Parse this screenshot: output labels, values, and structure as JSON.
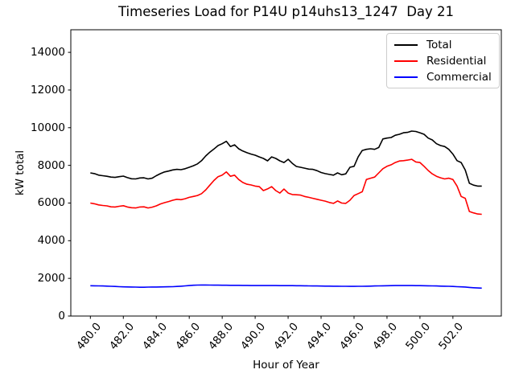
{
  "figure": {
    "background": "#ffffff",
    "axes_color": "#000000",
    "legend_border_color": "#cccccc"
  },
  "chart_data": {
    "type": "line",
    "title": "Timeseries Load for P14U p14uhs13_1247  Day 21",
    "xlabel": "Hour of Year",
    "ylabel": "kW total",
    "grid": false,
    "legend_position": "upper right",
    "xlim": [
      478.8125,
      504.9375
    ],
    "ylim": [
      0,
      15200
    ],
    "xtick_values": [
      480,
      482,
      484,
      486,
      488,
      490,
      492,
      494,
      496,
      498,
      500,
      502
    ],
    "xtick_labels": [
      "480.0",
      "482.0",
      "484.0",
      "486.0",
      "488.0",
      "490.0",
      "492.0",
      "494.0",
      "496.0",
      "498.0",
      "500.0",
      "502.0"
    ],
    "ytick_values": [
      0,
      2000,
      4000,
      6000,
      8000,
      10000,
      12000,
      14000
    ],
    "ytick_labels": [
      "0",
      "2000",
      "4000",
      "6000",
      "8000",
      "10000",
      "12000",
      "14000"
    ],
    "x_start": 480.0,
    "x_step": 0.25,
    "x_count": 96,
    "series": [
      {
        "name": "Total",
        "color": "#000000",
        "values": [
          7600,
          7560,
          7480,
          7450,
          7420,
          7380,
          7360,
          7400,
          7430,
          7350,
          7290,
          7280,
          7330,
          7340,
          7280,
          7320,
          7450,
          7560,
          7650,
          7700,
          7760,
          7790,
          7770,
          7820,
          7900,
          7980,
          8080,
          8250,
          8500,
          8700,
          8870,
          9050,
          9150,
          9280,
          9000,
          9090,
          8880,
          8760,
          8670,
          8600,
          8540,
          8450,
          8370,
          8240,
          8450,
          8370,
          8240,
          8150,
          8320,
          8110,
          7940,
          7900,
          7850,
          7800,
          7790,
          7720,
          7620,
          7560,
          7520,
          7480,
          7600,
          7500,
          7550,
          7900,
          7950,
          8450,
          8790,
          8850,
          8880,
          8850,
          8950,
          9400,
          9450,
          9480,
          9600,
          9650,
          9730,
          9750,
          9820,
          9800,
          9730,
          9650,
          9450,
          9350,
          9150,
          9050,
          9000,
          8850,
          8600,
          8250,
          8150,
          7750,
          7050,
          6950,
          6900,
          6900
        ]
      },
      {
        "name": "Residential",
        "color": "#ff0000",
        "values": [
          6000,
          5960,
          5900,
          5870,
          5850,
          5800,
          5790,
          5830,
          5860,
          5790,
          5750,
          5740,
          5790,
          5800,
          5740,
          5780,
          5850,
          5950,
          6020,
          6080,
          6150,
          6200,
          6180,
          6230,
          6300,
          6350,
          6400,
          6500,
          6700,
          6950,
          7200,
          7400,
          7480,
          7650,
          7420,
          7480,
          7250,
          7090,
          7000,
          6960,
          6900,
          6870,
          6660,
          6750,
          6870,
          6660,
          6530,
          6740,
          6530,
          6450,
          6440,
          6420,
          6350,
          6300,
          6250,
          6200,
          6150,
          6100,
          6030,
          5980,
          6110,
          6000,
          5980,
          6150,
          6400,
          6500,
          6600,
          7250,
          7320,
          7380,
          7600,
          7820,
          7950,
          8030,
          8150,
          8230,
          8250,
          8280,
          8320,
          8180,
          8150,
          7950,
          7730,
          7550,
          7420,
          7340,
          7280,
          7320,
          7250,
          6900,
          6350,
          6250,
          5550,
          5480,
          5420,
          5400
        ]
      },
      {
        "name": "Commercial",
        "color": "#0000ff",
        "values": [
          1610,
          1605,
          1600,
          1595,
          1590,
          1580,
          1570,
          1560,
          1550,
          1545,
          1540,
          1535,
          1530,
          1530,
          1535,
          1540,
          1540,
          1545,
          1550,
          1555,
          1560,
          1570,
          1585,
          1600,
          1620,
          1635,
          1645,
          1650,
          1650,
          1645,
          1640,
          1640,
          1635,
          1635,
          1630,
          1630,
          1630,
          1625,
          1625,
          1620,
          1620,
          1620,
          1620,
          1620,
          1620,
          1618,
          1615,
          1615,
          1615,
          1612,
          1610,
          1608,
          1605,
          1600,
          1598,
          1595,
          1592,
          1590,
          1588,
          1585,
          1582,
          1580,
          1578,
          1575,
          1575,
          1578,
          1580,
          1585,
          1590,
          1595,
          1600,
          1605,
          1610,
          1615,
          1618,
          1620,
          1620,
          1620,
          1618,
          1615,
          1612,
          1608,
          1605,
          1600,
          1595,
          1590,
          1585,
          1578,
          1570,
          1560,
          1550,
          1540,
          1520,
          1505,
          1490,
          1480
        ]
      }
    ]
  }
}
